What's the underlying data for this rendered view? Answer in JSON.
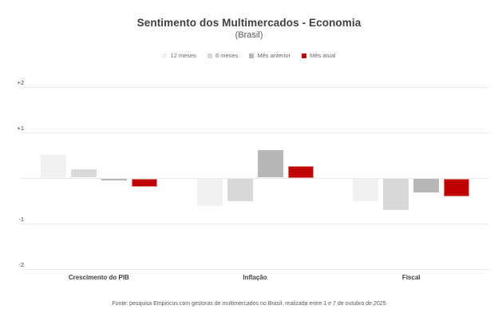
{
  "title": "Sentimento dos Multimercados - Economia",
  "subtitle": "(Brasil)",
  "footer": "Fonte: pesquisa Empiricus com gestoras de multimercados no Brasil, realizada entre 1 e 7 de outubro de 2025",
  "colors": {
    "series_12m": "#f1f1f1",
    "series_6m": "#d9d9d9",
    "series_prev": "#b7b7b7",
    "series_current": "#c00000",
    "gridline": "#e8e8e8"
  },
  "chart_data": {
    "type": "bar",
    "categories": [
      "Crescimento do PIB",
      "Inflação",
      "Fiscal"
    ],
    "series": [
      {
        "name": "12 meses",
        "color": "#f1f1f1",
        "values": [
          0.5,
          -0.6,
          -0.5
        ]
      },
      {
        "name": "6 meses",
        "color": "#d9d9d9",
        "values": [
          0.18,
          -0.5,
          -0.7
        ]
      },
      {
        "name": "Mês anterior",
        "color": "#b7b7b7",
        "values": [
          -0.05,
          0.6,
          -0.3
        ]
      },
      {
        "name": "Mês atual",
        "color": "#c00000",
        "values": [
          -0.18,
          0.25,
          -0.4
        ]
      }
    ],
    "title": "Sentimento dos Multimercados - Economia",
    "subtitle": "(Brasil)",
    "xlabel": "",
    "ylabel": "",
    "ylim": [
      -2,
      2
    ],
    "yticks": [
      {
        "value": 2,
        "label": "+2"
      },
      {
        "value": 1,
        "label": "+1"
      },
      {
        "value": 0,
        "label": ""
      },
      {
        "value": -1,
        "label": "-1"
      },
      {
        "value": -2,
        "label": "-2"
      }
    ],
    "grid": true,
    "legend_position": "top"
  }
}
